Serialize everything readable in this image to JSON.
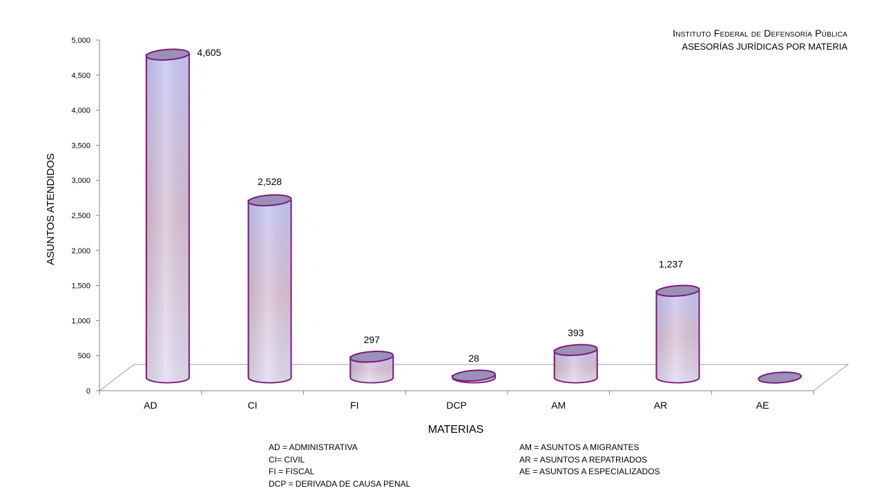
{
  "title": {
    "main": "Instituto Federal de Defensoría Pública",
    "sub": "ASESORÍAS JURÍDICAS POR MATERIA"
  },
  "chart_data": {
    "type": "bar",
    "title": "Instituto Federal de Defensoría Pública",
    "subtitle": "ASESORÍAS JURÍDICAS POR MATERIA",
    "xlabel": "MATERIAS",
    "ylabel": "ASUNTOS ATENDIDOS",
    "categories": [
      "AD",
      "CI",
      "FI",
      "DCP",
      "AM",
      "AR",
      "AE"
    ],
    "values": [
      4605,
      2528,
      297,
      28,
      393,
      1237,
      0
    ],
    "data_labels": [
      "4,605",
      "2,528",
      "297",
      "28",
      "393",
      "1,237",
      ""
    ],
    "ylim": [
      0,
      5000
    ],
    "yticks": [
      "0",
      "500",
      "1,000",
      "1,500",
      "2,000",
      "2,500",
      "3,000",
      "3,500",
      "4,000",
      "4,500",
      "5,000"
    ],
    "grid": false,
    "style": "3d-cylinder",
    "colors": {
      "bar_top": "#c8c8f5",
      "bar_mid": "#d8c0d6",
      "bar_outline": "#7a1a78",
      "cap_fill": "#9a90b8"
    }
  },
  "legend": {
    "left": [
      "AD = ADMINISTRATIVA",
      "CI= CIVIL",
      "FI = FISCAL",
      "DCP =  DERIVADA DE CAUSA  PENAL"
    ],
    "right": [
      "AM = ASUNTOS  A MIGRANTES",
      "AR = ASUNTOS  A REPATRIADOS",
      "AE = ASUNTOS  A ESPECIALIZADOS"
    ]
  }
}
